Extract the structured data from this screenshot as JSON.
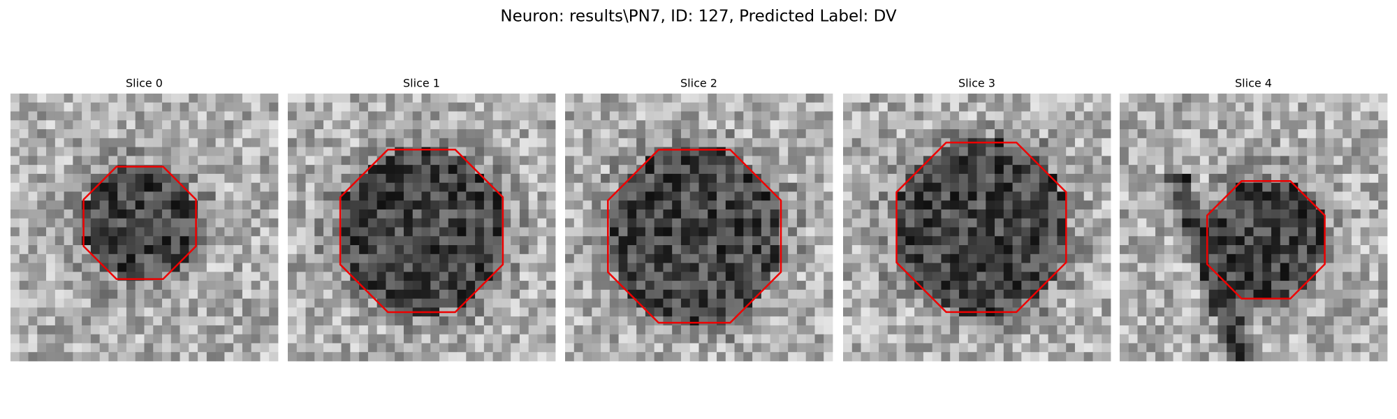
{
  "figure": {
    "title": "Neuron: results\\PN7, ID: 127, Predicted Label: DV",
    "panels": [
      {
        "title": "Slice 0"
      },
      {
        "title": "Slice 1"
      },
      {
        "title": "Slice 2"
      },
      {
        "title": "Slice 3"
      },
      {
        "title": "Slice 4"
      }
    ]
  }
}
